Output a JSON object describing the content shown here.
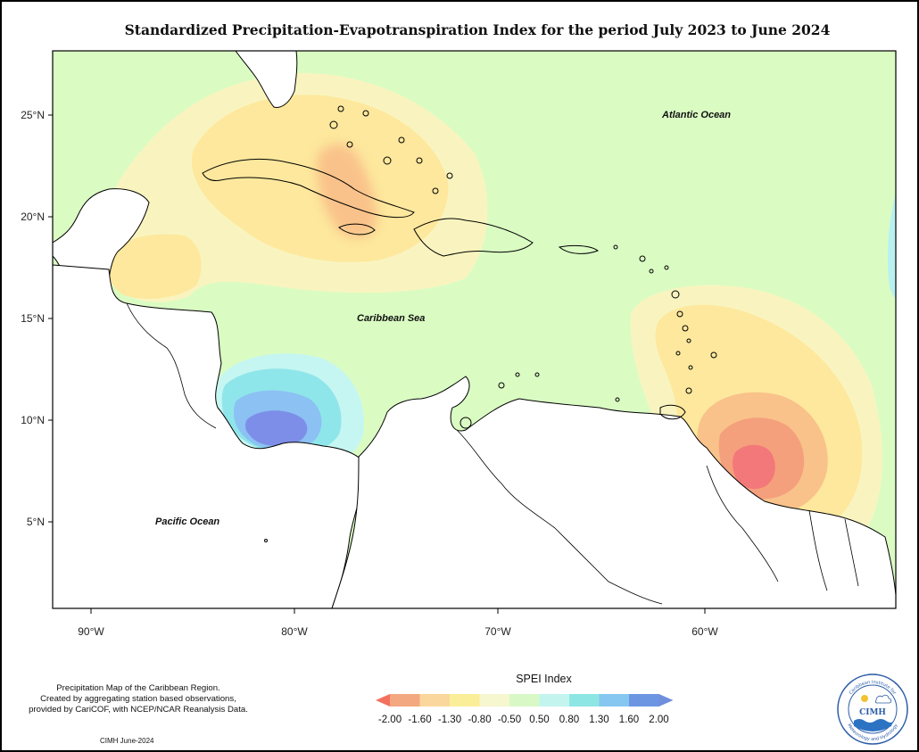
{
  "title": "Standardized Precipitation-Evapotranspiration Index for the period July 2023 to June 2024",
  "map": {
    "lat_ticks": [
      "25°N",
      "20°N",
      "15°N",
      "10°N",
      "5°N"
    ],
    "lon_ticks": [
      "90°W",
      "80°W",
      "70°W",
      "60°W"
    ],
    "labels": {
      "atlantic": "Atlantic Ocean",
      "caribbean": "Caribbean Sea",
      "pacific": "Pacific Ocean"
    }
  },
  "legend": {
    "title": "SPEI Index",
    "breaks": [
      "-2.00",
      "-1.60",
      "-1.30",
      "-0.80",
      "-0.50",
      "0.50",
      "0.80",
      "1.30",
      "1.60",
      "2.00"
    ],
    "colors": [
      "#f4705f",
      "#f3a880",
      "#fad79c",
      "#fbee98",
      "#f6f6cf",
      "#d8f8c6",
      "#c4f4ee",
      "#8ee6e4",
      "#86c7f2",
      "#6d96e2",
      "#6f8fdc"
    ]
  },
  "caption": {
    "line1": "Precipitation Map of the Caribbean Region.",
    "line2": "Created by aggregating station based observations,",
    "line3": "provided by CariCOF, with NCEP/NCAR Reanalysis Data."
  },
  "credit": "CIMH June-2024",
  "logo": {
    "text": "CIMH",
    "ring_top": "Caribbean Institute for",
    "ring_bottom": "Meteorology and Hydrology"
  }
}
